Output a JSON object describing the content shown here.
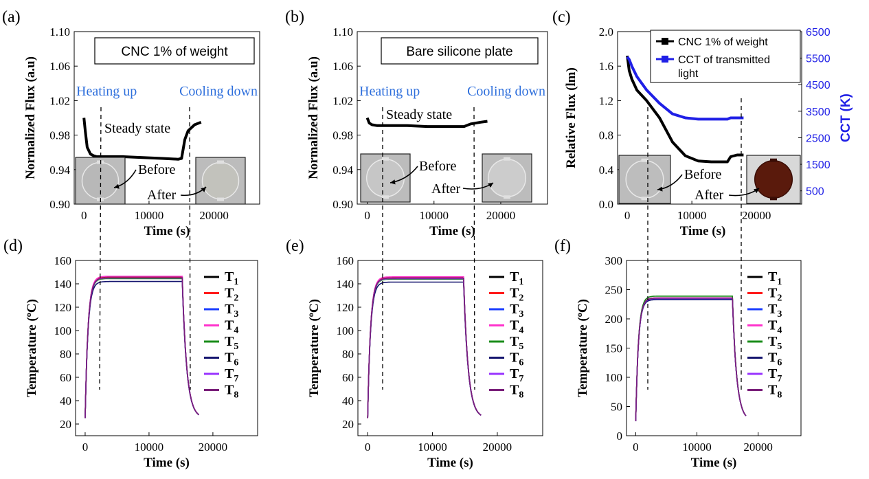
{
  "chart_data": [
    {
      "id": "a",
      "type": "line",
      "panel_label": "(a)",
      "xlabel": "Time (s)",
      "ylabel": "Normalized Flux (a.u)",
      "xlim": [
        -1500,
        27000
      ],
      "ylim": [
        0.9,
        1.1
      ],
      "xticks": [
        0,
        10000,
        20000
      ],
      "xticklabels": [
        "0",
        "10000",
        "20000"
      ],
      "yticks": [
        0.9,
        0.94,
        0.98,
        1.02,
        1.06,
        1.1
      ],
      "yticklabels": [
        "0.90",
        "0.94",
        "0.98",
        "1.02",
        "1.06",
        "1.10"
      ],
      "legend_box": "CNC 1% of weight",
      "annotations": [
        {
          "text": "Heating up",
          "color": "#2e6fdc"
        },
        {
          "text": "Cooling down",
          "color": "#2e6fdc"
        },
        {
          "text": "Steady state",
          "color": "#000000"
        },
        {
          "text": "Before",
          "color": "#000000"
        },
        {
          "text": "After",
          "color": "#000000"
        }
      ],
      "series": [
        {
          "color": "#000000",
          "x": [
            0,
            200,
            500,
            1000,
            1500,
            2000,
            3000,
            6000,
            9000,
            12000,
            14500,
            15000,
            15500,
            16000,
            17000,
            18000
          ],
          "y": [
            1.0,
            0.985,
            0.966,
            0.958,
            0.956,
            0.955,
            0.955,
            0.955,
            0.954,
            0.953,
            0.952,
            0.953,
            0.975,
            0.985,
            0.992,
            0.995
          ]
        }
      ]
    },
    {
      "id": "b",
      "type": "line",
      "panel_label": "(b)",
      "xlabel": "Time (s)",
      "ylabel": "Normalized Flux (a.u)",
      "xlim": [
        -1500,
        27000
      ],
      "ylim": [
        0.9,
        1.1
      ],
      "xticks": [
        0,
        10000,
        20000
      ],
      "xticklabels": [
        "0",
        "10000",
        "20000"
      ],
      "yticks": [
        0.9,
        0.94,
        0.98,
        1.02,
        1.06,
        1.1
      ],
      "yticklabels": [
        "0.90",
        "0.94",
        "0.98",
        "1.02",
        "1.06",
        "1.10"
      ],
      "legend_box": "Bare silicone plate",
      "annotations": [
        {
          "text": "Heating up",
          "color": "#2e6fdc"
        },
        {
          "text": "Cooling down",
          "color": "#2e6fdc"
        },
        {
          "text": "Steady state",
          "color": "#000000"
        },
        {
          "text": "Before",
          "color": "#000000"
        },
        {
          "text": "After",
          "color": "#000000"
        }
      ],
      "series": [
        {
          "color": "#000000",
          "x": [
            0,
            300,
            700,
            1500,
            3000,
            6000,
            9000,
            12000,
            14500,
            15500,
            17000,
            18000
          ],
          "y": [
            1.0,
            0.994,
            0.992,
            0.991,
            0.991,
            0.991,
            0.99,
            0.99,
            0.99,
            0.993,
            0.995,
            0.996
          ]
        }
      ]
    },
    {
      "id": "c",
      "type": "line",
      "panel_label": "(c)",
      "xlabel": "Time (s)",
      "ylabel": "Relative Flux (lm)",
      "y2label": "CCT (K)",
      "xlim": [
        -1500,
        27000
      ],
      "ylim": [
        0.0,
        2.0
      ],
      "y2lim": [
        0,
        6500
      ],
      "xticks": [
        0,
        10000,
        20000
      ],
      "xticklabels": [
        "0",
        "10000",
        "20000"
      ],
      "yticks": [
        0.0,
        0.4,
        0.8,
        1.2,
        1.6,
        2.0
      ],
      "yticklabels": [
        "0.0",
        "0.4",
        "0.8",
        "1.2",
        "1.6",
        "2.0"
      ],
      "y2ticks": [
        500,
        1500,
        2500,
        3500,
        4500,
        5500,
        6500
      ],
      "y2ticklabels": [
        "500",
        "1500",
        "2500",
        "3500",
        "4500",
        "5500",
        "6500"
      ],
      "legend": [
        "CNC  1% of weight",
        "CCT of transmitted",
        "light"
      ],
      "annotations": [
        {
          "text": "Before",
          "color": "#000000"
        },
        {
          "text": "After",
          "color": "#000000"
        }
      ],
      "series": [
        {
          "name": "CNC  1% of weight",
          "color": "#000000",
          "axis": "left",
          "x": [
            0,
            300,
            700,
            1500,
            3000,
            5000,
            7000,
            9000,
            11000,
            13000,
            15500,
            16000,
            17000,
            18000
          ],
          "y": [
            1.72,
            1.55,
            1.45,
            1.32,
            1.2,
            1.0,
            0.72,
            0.56,
            0.5,
            0.49,
            0.49,
            0.55,
            0.57,
            0.57
          ]
        },
        {
          "name": "CCT of transmitted light",
          "color": "#1f1fe6",
          "axis": "right",
          "x": [
            0,
            300,
            700,
            1500,
            3000,
            5000,
            7000,
            9000,
            11000,
            13000,
            15500,
            16000,
            18000
          ],
          "y": [
            5550,
            5450,
            5200,
            4800,
            4300,
            3800,
            3400,
            3250,
            3200,
            3200,
            3200,
            3250,
            3250
          ]
        }
      ]
    },
    {
      "id": "d",
      "type": "line",
      "panel_label": "(d)",
      "xlabel": "Time (s)",
      "ylabel": "Temperature (ºC)",
      "xlim": [
        -1500,
        27000
      ],
      "ylim": [
        10,
        160
      ],
      "xticks": [
        0,
        10000,
        20000
      ],
      "xticklabels": [
        "0",
        "10000",
        "20000"
      ],
      "yticks": [
        20,
        40,
        60,
        80,
        100,
        120,
        140,
        160
      ],
      "yticklabels": [
        "20",
        "40",
        "60",
        "80",
        "100",
        "120",
        "140",
        "160"
      ],
      "ambient": 25,
      "plateaus": [
        146,
        145.5,
        145,
        146.5,
        144.5,
        142,
        145,
        145.2
      ],
      "t_off": 15200,
      "t_end": 17800,
      "legend": [
        "T1",
        "T2",
        "T3",
        "T4",
        "T5",
        "T6",
        "T7",
        "T8"
      ]
    },
    {
      "id": "e",
      "type": "line",
      "panel_label": "(e)",
      "xlabel": "Time (s)",
      "ylabel": "Temperature (ºC)",
      "xlim": [
        -1500,
        27000
      ],
      "ylim": [
        10,
        160
      ],
      "xticks": [
        0,
        10000,
        20000
      ],
      "xticklabels": [
        "0",
        "10000",
        "20000"
      ],
      "yticks": [
        20,
        40,
        60,
        80,
        100,
        120,
        140,
        160
      ],
      "yticklabels": [
        "20",
        "40",
        "60",
        "80",
        "100",
        "120",
        "140",
        "160"
      ],
      "ambient": 25,
      "plateaus": [
        145.5,
        145,
        144.5,
        146,
        144,
        141.5,
        144.5,
        144.8
      ],
      "t_off": 14800,
      "t_end": 17500,
      "legend": [
        "T1",
        "T2",
        "T3",
        "T4",
        "T5",
        "T6",
        "T7",
        "T8"
      ]
    },
    {
      "id": "f",
      "type": "line",
      "panel_label": "(f)",
      "xlabel": "Time (s)",
      "ylabel": "Temperature (ºC)",
      "xlim": [
        -1500,
        27000
      ],
      "ylim": [
        0,
        300
      ],
      "xticks": [
        0,
        10000,
        20000
      ],
      "xticklabels": [
        "0",
        "10000",
        "20000"
      ],
      "yticks": [
        0,
        50,
        100,
        150,
        200,
        250,
        300
      ],
      "yticklabels": [
        "0",
        "50",
        "100",
        "150",
        "200",
        "250",
        "300"
      ],
      "ambient": 25,
      "plateaus": [
        236,
        235,
        234,
        236,
        239,
        233,
        235,
        235.5
      ],
      "t_off": 15800,
      "t_end": 18000,
      "legend": [
        "T1",
        "T2",
        "T3",
        "T4",
        "T5",
        "T6",
        "T7",
        "T8"
      ]
    }
  ],
  "temperature_series_colors": [
    "#000000",
    "#ff1a1a",
    "#1a3cff",
    "#ff33cc",
    "#1a8c1a",
    "#14146e",
    "#9933ff",
    "#7a1f7a"
  ],
  "temperature_legend_subscripts": [
    "1",
    "2",
    "3",
    "4",
    "5",
    "6",
    "7",
    "8"
  ],
  "photos": {
    "a_before": "#b8b8b8",
    "a_after": "#c2c2bc",
    "b_before": "#c6c6c6",
    "b_after": "#cccccc",
    "c_before": "#bdbdbd",
    "c_after": "#5a1a0c"
  }
}
